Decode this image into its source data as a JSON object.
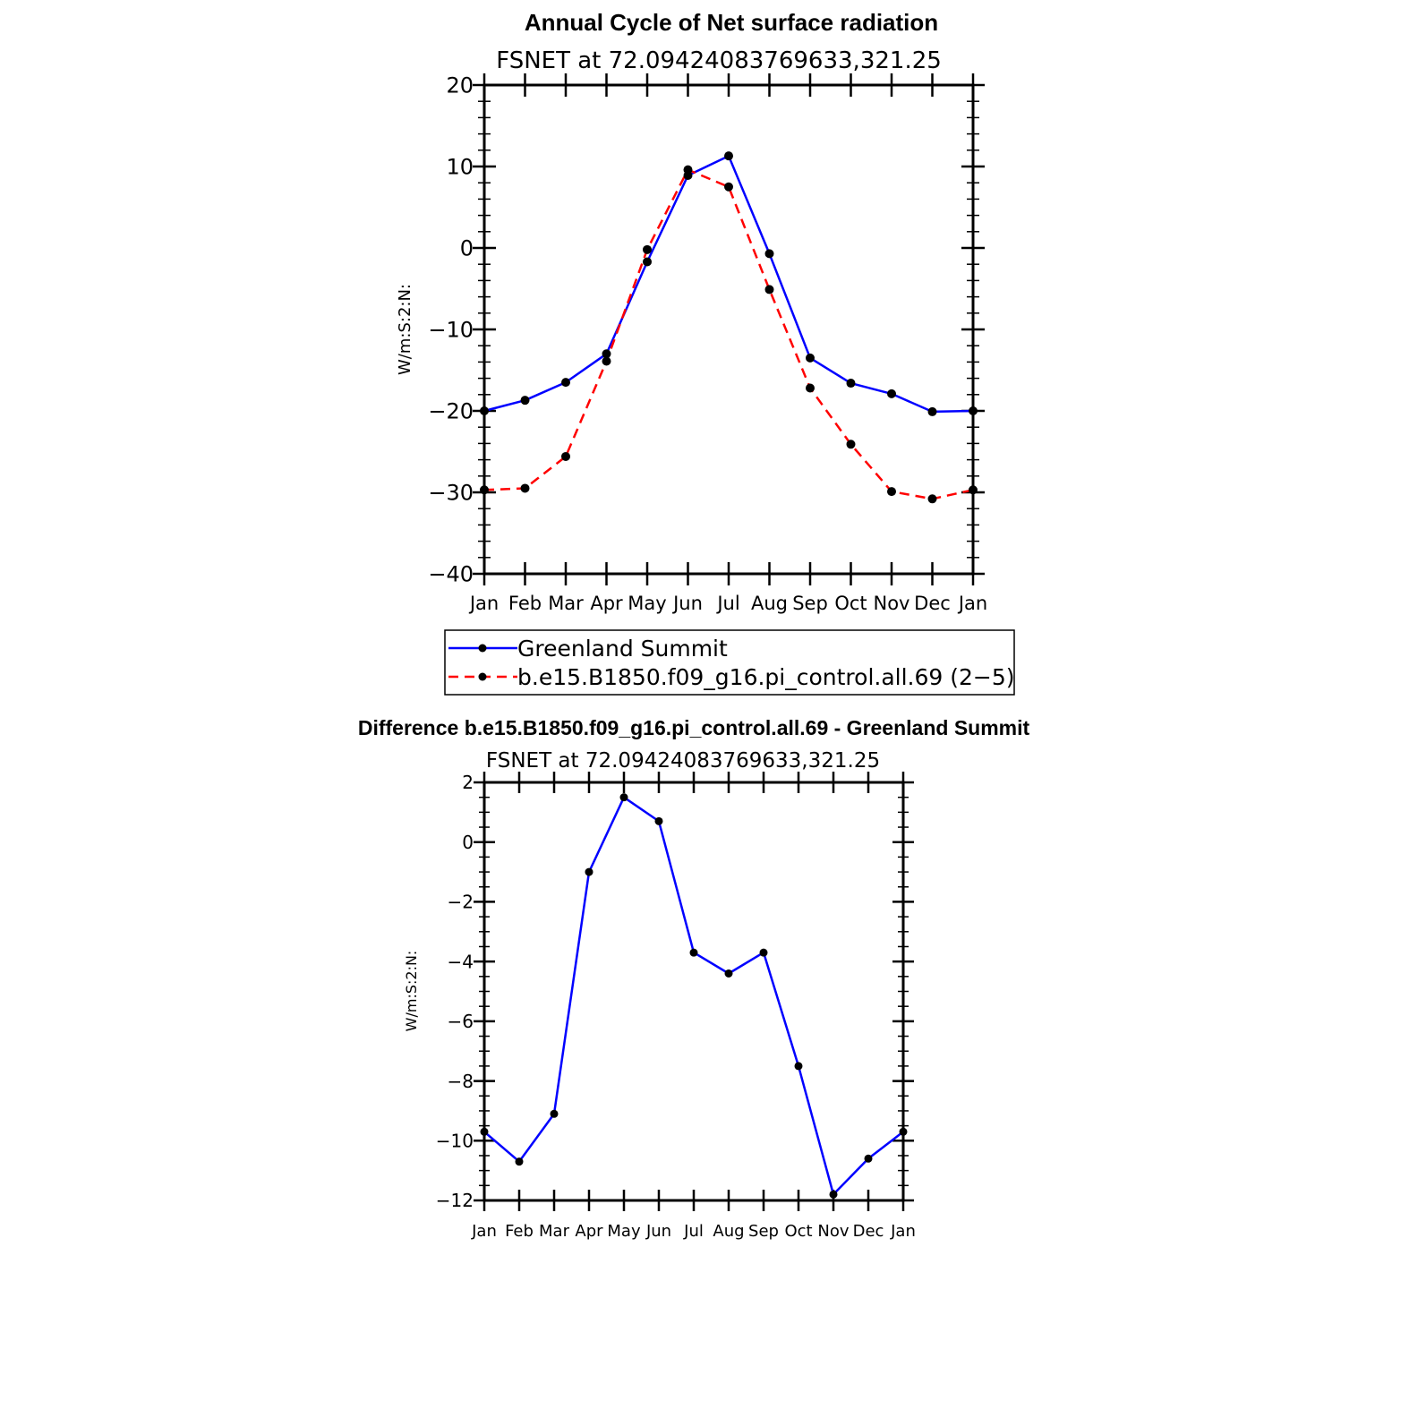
{
  "chart_data": [
    {
      "type": "line",
      "title": "Annual Cycle of Net surface radiation",
      "subtitle": "FSNET at 72.09424083769633,321.25",
      "xlabel": "",
      "ylabel": "W/m:S:2:N:",
      "categories": [
        "Jan",
        "Feb",
        "Mar",
        "Apr",
        "May",
        "Jun",
        "Jul",
        "Aug",
        "Sep",
        "Oct",
        "Nov",
        "Dec",
        "Jan"
      ],
      "ylim": [
        -40,
        20
      ],
      "yticks": [
        20,
        10,
        0,
        -10,
        -20,
        -30,
        -40
      ],
      "ytick_labels": [
        "20",
        "10",
        "0",
        "−10",
        "−20",
        "−30",
        "−40"
      ],
      "grid": false,
      "legend_position": "bottom",
      "series": [
        {
          "name": "Greenland Summit",
          "color": "#0000ff",
          "dash": "solid",
          "values": [
            -20.0,
            -18.7,
            -16.5,
            -13.0,
            -1.7,
            8.9,
            11.3,
            -0.7,
            -13.5,
            -16.6,
            -17.9,
            -20.1,
            -20.0
          ]
        },
        {
          "name": "b.e15.B1850.f09_g16.pi_control.all.69 (2−5)",
          "color": "#ff0000",
          "dash": "dashed",
          "values": [
            -29.7,
            -29.5,
            -25.6,
            -13.9,
            -0.2,
            9.6,
            7.5,
            -5.1,
            -17.2,
            -24.1,
            -29.9,
            -30.8,
            -29.7
          ]
        }
      ]
    },
    {
      "type": "line",
      "title": "Difference b.e15.B1850.f09_g16.pi_control.all.69 - Greenland Summit",
      "subtitle": "FSNET at 72.09424083769633,321.25",
      "xlabel": "",
      "ylabel": "W/m:S:2:N:",
      "categories": [
        "Jan",
        "Feb",
        "Mar",
        "Apr",
        "May",
        "Jun",
        "Jul",
        "Aug",
        "Sep",
        "Oct",
        "Nov",
        "Dec",
        "Jan"
      ],
      "ylim": [
        -12,
        2
      ],
      "yticks": [
        2,
        0,
        -2,
        -4,
        -6,
        -8,
        -10,
        -12
      ],
      "ytick_labels": [
        "2",
        "0",
        "−2",
        "−4",
        "−6",
        "−8",
        "−10",
        "−12"
      ],
      "grid": false,
      "series": [
        {
          "color": "#0000ff",
          "dash": "solid",
          "values": [
            -9.7,
            -10.7,
            -9.1,
            -1.0,
            1.5,
            0.7,
            -3.7,
            -4.4,
            -3.7,
            -7.5,
            -11.8,
            -10.6,
            -9.7
          ]
        }
      ]
    }
  ]
}
